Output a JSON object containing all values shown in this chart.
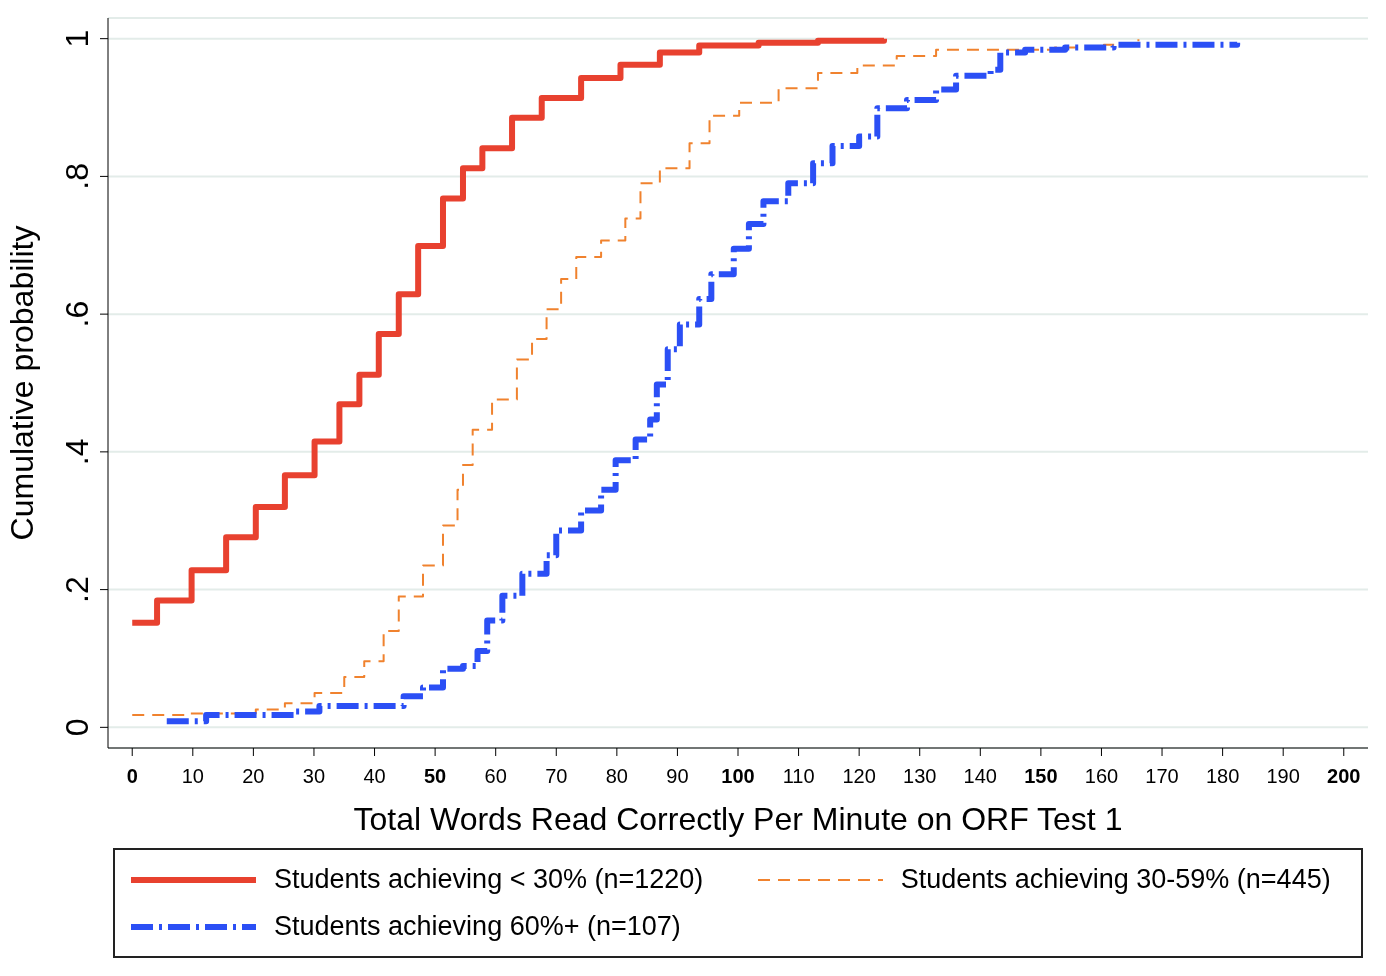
{
  "chart_data": {
    "type": "step",
    "xlabel": "Total Words Read Correctly Per Minute on ORF Test 1",
    "ylabel": "Cumulative probability",
    "xlim": [
      -4,
      204
    ],
    "xticks": [
      0,
      10,
      20,
      30,
      40,
      50,
      60,
      70,
      80,
      90,
      100,
      110,
      120,
      130,
      140,
      150,
      160,
      170,
      180,
      190,
      200
    ],
    "ylim": [
      -0.03,
      1.03
    ],
    "yticks": [
      {
        "value": 0,
        "label": "0"
      },
      {
        "value": 0.2,
        "label": ".2"
      },
      {
        "value": 0.4,
        "label": ".4"
      },
      {
        "value": 0.6,
        "label": ".6"
      },
      {
        "value": 0.8,
        "label": ".8"
      },
      {
        "value": 1,
        "label": "1"
      }
    ],
    "grid": "y",
    "legend": "bottom",
    "marker": "none",
    "series": [
      {
        "name": "Students achieving < 30% (n=1220)",
        "color": "#e8412f",
        "line_style": "solid",
        "x": [
          0,
          4.1,
          9.8,
          15.5,
          20.4,
          25.2,
          30.1,
          34.2,
          37.5,
          40.7,
          44,
          47.2,
          51.3,
          54.6,
          57.8,
          62.7,
          67.6,
          74.1,
          80.6,
          87.1,
          93.6,
          103.4,
          113.2,
          124.1
        ],
        "values": [
          0.152,
          0.184,
          0.228,
          0.276,
          0.32,
          0.366,
          0.415,
          0.469,
          0.512,
          0.571,
          0.629,
          0.699,
          0.768,
          0.812,
          0.841,
          0.885,
          0.914,
          0.943,
          0.962,
          0.98,
          0.99,
          0.994,
          0.997,
          1
        ]
      },
      {
        "name": "Students achieving 30-59% (n=445)",
        "color": "#f0822e",
        "line_style": "dashed",
        "x": [
          0,
          9,
          20.4,
          25.2,
          30.1,
          35,
          38.3,
          41.5,
          44,
          48,
          51.3,
          53.7,
          54.6,
          56.2,
          59.4,
          63.5,
          66,
          68.4,
          70.8,
          73.3,
          77.4,
          81.4,
          83.9,
          87.1,
          92,
          95.3,
          100.2,
          106.7,
          113.2,
          119.7,
          126.2,
          132.7,
          142.5,
          152.3,
          160.4,
          166.1
        ],
        "values": [
          0.018,
          0.02,
          0.026,
          0.035,
          0.05,
          0.073,
          0.096,
          0.14,
          0.19,
          0.235,
          0.293,
          0.345,
          0.381,
          0.432,
          0.476,
          0.534,
          0.564,
          0.607,
          0.651,
          0.683,
          0.707,
          0.739,
          0.79,
          0.812,
          0.848,
          0.888,
          0.907,
          0.928,
          0.95,
          0.961,
          0.975,
          0.984,
          0.984,
          0.987,
          0.991,
          0.999
        ]
      },
      {
        "name": "Students achieving 60%+ (n=107)",
        "color": "#2b4ff5",
        "line_style": "dashed",
        "x": [
          5.7,
          12.2,
          26.9,
          30.9,
          41.5,
          44.8,
          48,
          51.3,
          54.6,
          57,
          58.6,
          61.1,
          64.4,
          68.4,
          70,
          74.1,
          77.4,
          79.8,
          83.1,
          85.5,
          86.6,
          88.4,
          90.4,
          93.6,
          95.6,
          99.3,
          101.8,
          104.2,
          108.3,
          112.4,
          115.6,
          120,
          123,
          127.9,
          132.7,
          136,
          141.7,
          143.3,
          147.4,
          154,
          162,
          182.4
        ],
        "values": [
          0.009,
          0.018,
          0.023,
          0.031,
          0.031,
          0.045,
          0.058,
          0.085,
          0.089,
          0.111,
          0.155,
          0.191,
          0.223,
          0.25,
          0.286,
          0.315,
          0.345,
          0.388,
          0.418,
          0.447,
          0.498,
          0.549,
          0.585,
          0.622,
          0.658,
          0.695,
          0.731,
          0.764,
          0.79,
          0.819,
          0.844,
          0.858,
          0.899,
          0.911,
          0.926,
          0.946,
          0.955,
          0.98,
          0.984,
          0.987,
          0.991,
          0.994
        ]
      }
    ]
  }
}
